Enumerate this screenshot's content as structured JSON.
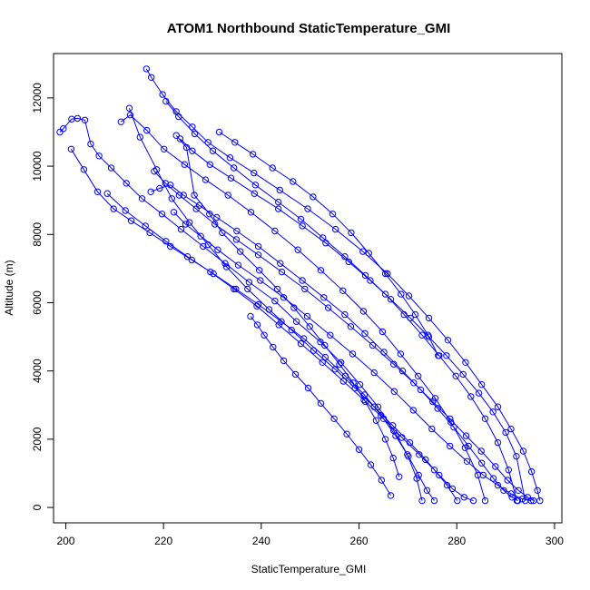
{
  "chart_data": {
    "type": "scatter",
    "title": "ATOM1 Northbound StaticTemperature_GMI",
    "xlabel": "StaticTemperature_GMI",
    "ylabel": "Altitude (m)",
    "xlim": [
      197.5,
      301.5
    ],
    "ylim": [
      -450,
      13300
    ],
    "xticks": [
      200,
      220,
      240,
      260,
      280,
      300
    ],
    "yticks": [
      0,
      2000,
      4000,
      6000,
      8000,
      10000,
      12000
    ],
    "grid": false,
    "legend": "none",
    "marker": "open-circle",
    "connect_points": true,
    "series_color": "#0000ff",
    "series": [
      {
        "x": [
          216.5,
          217.5,
          219.8,
          222.6,
          225.9,
          229.1,
          233.6,
          238.5,
          243.8,
          249.5,
          255.2,
          260.8,
          265.8,
          270.2,
          274.3,
          278.2,
          281.8,
          285.1,
          288.4,
          291.1,
          293.6,
          295.3,
          296.5,
          297.0
        ],
        "y": [
          12850,
          12600,
          12100,
          11600,
          11150,
          10700,
          10250,
          9800,
          9300,
          8750,
          8150,
          7500,
          6850,
          6200,
          5550,
          4900,
          4250,
          3600,
          2950,
          2300,
          1650,
          1050,
          500,
          200
        ]
      },
      {
        "x": [
          198.8,
          199.5,
          201.2,
          202.4,
          203.9,
          205.1,
          206.8,
          209.3,
          212.4,
          215.6,
          219.7,
          223.6,
          228.1,
          232.6,
          237.5,
          242.8,
          247.2,
          252.1,
          256.3,
          260.2,
          263.9,
          267.1,
          269.9,
          271.8,
          272.9
        ],
        "y": [
          11000,
          11100,
          11380,
          11400,
          11350,
          10650,
          10300,
          9950,
          9500,
          9050,
          8600,
          8150,
          7650,
          7150,
          6600,
          6050,
          5450,
          4850,
          4250,
          3600,
          2950,
          2250,
          1550,
          850,
          200
        ]
      },
      {
        "x": [
          201.1,
          203.7,
          206.5,
          209.8,
          213.4,
          217.2,
          221.4,
          225.8,
          230.2,
          234.8,
          239.4,
          244.1,
          248.7,
          253.1,
          257.2,
          261.1,
          264.5,
          267.5,
          270.1,
          272.2,
          273.9,
          275.4
        ],
        "y": [
          10500,
          9900,
          9250,
          8750,
          8400,
          8050,
          7650,
          7250,
          6850,
          6400,
          5950,
          5450,
          4950,
          4400,
          3850,
          3300,
          2700,
          2100,
          1500,
          950,
          500,
          200
        ]
      },
      {
        "x": [
          211.3,
          213.2,
          216.6,
          220.1,
          224.3,
          228.6,
          233.2,
          237.9,
          242.8,
          247.5,
          252.2,
          256.7,
          260.9,
          264.8,
          268.5,
          272.1,
          275.6,
          278.8,
          281.7,
          284.3,
          285.8
        ],
        "y": [
          11300,
          11500,
          11050,
          10500,
          10050,
          9600,
          9150,
          8650,
          8100,
          7550,
          6950,
          6350,
          5750,
          5150,
          4500,
          3850,
          3200,
          2500,
          1750,
          950,
          200
        ]
      },
      {
        "x": [
          213.0,
          215.2,
          218.6,
          221.7,
          225.3,
          229.1,
          232.9,
          237.2,
          241.6,
          246.2,
          250.7,
          255.1,
          259.2,
          263.1,
          266.9,
          270.4,
          273.6,
          276.4,
          279.1,
          281.5,
          283.4
        ],
        "y": [
          11700,
          10850,
          9900,
          9050,
          8350,
          7700,
          7050,
          6400,
          5800,
          5200,
          4600,
          4050,
          3500,
          2950,
          2400,
          1900,
          1400,
          950,
          550,
          300,
          200
        ]
      },
      {
        "x": [
          220.5,
          223.1,
          226.4,
          230.1,
          234.4,
          238.8,
          243.5,
          248.1,
          252.6,
          257.1,
          261.3,
          265.4,
          269.2,
          272.9,
          276.4,
          279.8,
          282.9,
          285.8,
          288.4,
          290.6,
          292.3
        ],
        "y": [
          11900,
          11450,
          10950,
          10450,
          9950,
          9450,
          8950,
          8450,
          7900,
          7350,
          6800,
          6250,
          5650,
          5050,
          4450,
          3850,
          3250,
          2600,
          1900,
          1100,
          200
        ]
      },
      {
        "x": [
          218.1,
          220.4,
          223.2,
          226.7,
          230.5,
          234.9,
          239.4,
          244.2,
          248.9,
          253.7,
          258.3,
          262.8,
          267.1,
          271.2,
          275.1,
          278.6,
          281.9,
          285.0,
          287.9,
          290.4,
          292.6,
          294.5,
          295.7
        ],
        "y": [
          9850,
          9500,
          9150,
          8750,
          8300,
          7850,
          7400,
          6900,
          6400,
          5850,
          5300,
          4750,
          4200,
          3650,
          3100,
          2600,
          2100,
          1650,
          1200,
          800,
          500,
          300,
          200
        ]
      },
      {
        "x": [
          208.5,
          212.2,
          216.3,
          220.5,
          224.9,
          229.6,
          234.4,
          239.1,
          243.6,
          248.1,
          252.5,
          256.8,
          261.0,
          265.0,
          268.8,
          272.3,
          275.4,
          278.0,
          280.1
        ],
        "y": [
          9200,
          8700,
          8250,
          7800,
          7350,
          6900,
          6400,
          5900,
          5350,
          4800,
          4250,
          3700,
          3150,
          2600,
          2050,
          1550,
          1100,
          650,
          200
        ]
      },
      {
        "x": [
          217.4,
          219.2,
          221.4,
          224.1,
          227.3,
          230.9,
          235.0,
          239.4,
          243.9,
          248.4,
          252.8,
          257.1,
          261.2,
          265.1,
          268.9,
          272.6,
          276.1,
          279.4,
          282.4,
          285.1,
          287.5,
          289.6,
          291.3,
          292.5
        ],
        "y": [
          9250,
          9350,
          9450,
          9150,
          8850,
          8500,
          8100,
          7650,
          7150,
          6650,
          6150,
          5650,
          5100,
          4550,
          4000,
          3450,
          2900,
          2350,
          1800,
          1300,
          850,
          500,
          300,
          200
        ]
      },
      {
        "x": [
          222.1,
          224.5,
          227.6,
          231.1,
          235.3,
          239.8,
          244.6,
          249.4,
          254.1,
          258.7,
          263.1,
          267.2,
          271.1,
          274.9,
          278.6,
          282.1,
          285.4,
          288.4,
          291.1,
          293.4,
          295.2
        ],
        "y": [
          8650,
          8300,
          7950,
          7550,
          7100,
          6650,
          6150,
          5600,
          5050,
          4500,
          3950,
          3400,
          2850,
          2300,
          1800,
          1350,
          950,
          650,
          400,
          250,
          200
        ]
      },
      {
        "x": [
          223.4,
          225.9,
          229.5,
          233.8,
          238.6,
          243.5,
          248.4,
          253.2,
          257.9,
          262.3,
          266.5,
          270.5,
          274.3,
          277.9,
          281.3,
          284.5,
          287.4,
          290.0,
          292.2,
          294.0
        ],
        "y": [
          10800,
          10450,
          10050,
          9650,
          9200,
          8750,
          8250,
          7750,
          7200,
          6650,
          6100,
          5550,
          5000,
          4450,
          3900,
          3350,
          2800,
          2200,
          1500,
          200
        ]
      },
      {
        "x": [
          222.6,
          224.7,
          226.3,
          229.4,
          232.0,
          235.7,
          239.6,
          243.3,
          246.7,
          249.9,
          253.0,
          256.0,
          258.8,
          261.3,
          263.5,
          265.4,
          267.0,
          268.2
        ],
        "y": [
          10900,
          10550,
          9150,
          8600,
          8050,
          7500,
          6950,
          6400,
          5850,
          5300,
          4750,
          4200,
          3650,
          3100,
          2550,
          2000,
          1450,
          900
        ]
      },
      {
        "x": [
          231.4,
          234.6,
          238.3,
          242.3,
          246.5,
          250.6,
          254.6,
          258.4,
          262.0,
          265.4,
          268.6,
          271.5,
          274.1,
          276.2
        ],
        "y": [
          11000,
          10700,
          10350,
          9950,
          9550,
          9100,
          8600,
          8050,
          7450,
          6850,
          6250,
          5650,
          5050,
          4450
        ]
      },
      {
        "x": [
          237.8,
          239.2,
          240.6,
          242.4,
          244.6,
          247.0,
          249.6,
          252.2,
          254.9,
          257.5,
          260.0,
          262.4,
          264.6,
          266.5
        ],
        "y": [
          5600,
          5350,
          5050,
          4700,
          4300,
          3900,
          3500,
          3050,
          2600,
          2150,
          1700,
          1250,
          800,
          350
        ]
      }
    ]
  }
}
